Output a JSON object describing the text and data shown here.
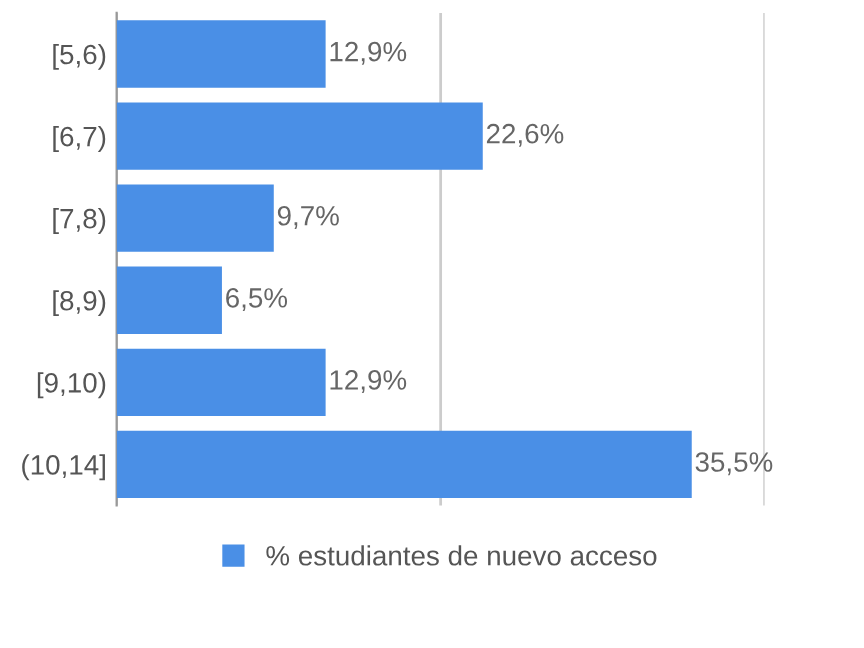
{
  "chart_data": {
    "type": "bar",
    "orientation": "horizontal",
    "categories": [
      "[5,6)",
      "[6,7)",
      "[7,8)",
      "[8,9)",
      "[9,10)",
      "(10,14]"
    ],
    "series": [
      {
        "name": "% estudiantes de nuevo acceso",
        "color": "#4a8fe6",
        "values": [
          12.9,
          22.6,
          9.7,
          6.5,
          12.9,
          35.5
        ],
        "value_labels": [
          "12,9%",
          "22,6%",
          "9,7%",
          "6,5%",
          "12,9%",
          "35,5%"
        ]
      }
    ],
    "xlim": [
      0,
      40
    ],
    "xticks": [
      {
        "value": 0,
        "label": null
      },
      {
        "value": 20,
        "label": null
      },
      {
        "value": 40,
        "label": null
      }
    ],
    "tick_labels": "y",
    "grid": "x",
    "legend": "bottom"
  }
}
